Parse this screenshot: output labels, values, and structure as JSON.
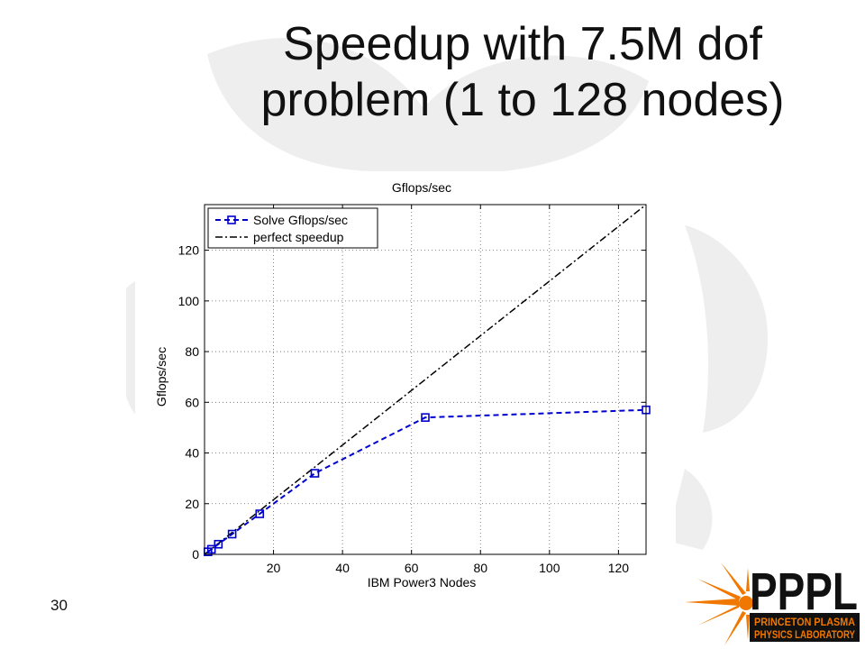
{
  "slide": {
    "title_line1": "Speedup with 7.5M dof",
    "title_line2": "problem (1 to 128 nodes)",
    "page_number": "30"
  },
  "logo": {
    "text_main": "PPPL",
    "text_sub1": "PRINCETON PLASMA",
    "text_sub2": "PHYSICS LABORATORY",
    "colors": {
      "main": "#111111",
      "accent": "#f07800"
    }
  },
  "chart_data": {
    "type": "line",
    "title": "Gflops/sec",
    "xlabel": "IBM Power3 Nodes",
    "ylabel": "Gflops/sec",
    "xlim": [
      0,
      128
    ],
    "ylim": [
      0,
      138
    ],
    "xticks": [
      20,
      40,
      60,
      80,
      100,
      120
    ],
    "yticks": [
      0,
      20,
      40,
      60,
      80,
      100,
      120
    ],
    "grid": true,
    "legend_position": "top-left",
    "series": [
      {
        "name": "Solve Gflops/sec",
        "color": "#0000cc",
        "style": "dashed",
        "marker": "square",
        "x": [
          1,
          2,
          4,
          8,
          16,
          32,
          64,
          128
        ],
        "y": [
          1,
          2,
          4,
          8,
          16,
          32,
          54,
          57
        ]
      },
      {
        "name": "perfect speedup",
        "color": "#000000",
        "style": "dashdot",
        "marker": "none",
        "x": [
          0,
          128
        ],
        "y": [
          0,
          138
        ]
      }
    ]
  }
}
